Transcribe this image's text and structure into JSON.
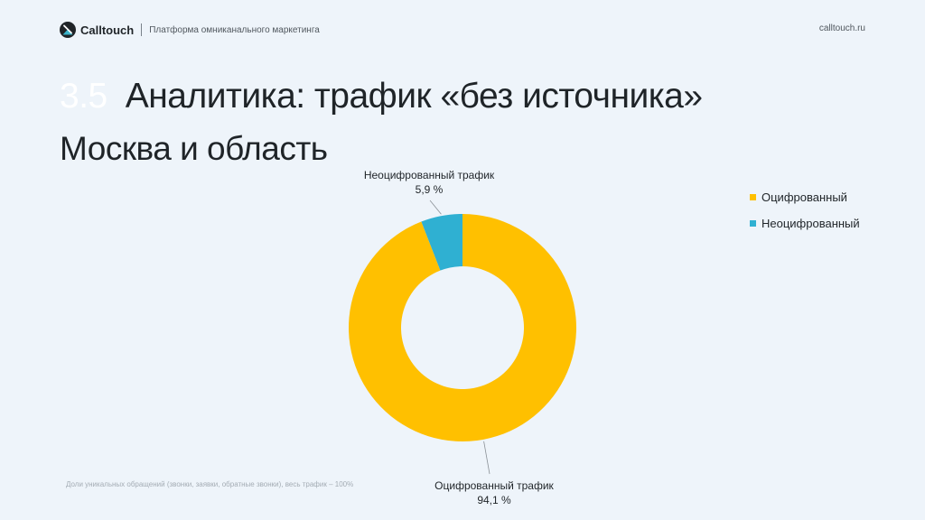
{
  "header": {
    "brand": "Calltouch",
    "tagline": "Платформа омниканального маркетинга",
    "site": "calltouch.ru"
  },
  "slide": {
    "section_number": "3.5",
    "title": "Аналитика: трафик «без источника»",
    "subtitle": "Москва и область",
    "footnote": "Доли уникальных обращений (звонки, заявки, обратные звонки), весь трафик – 100%"
  },
  "colors": {
    "digitized": "#ffc000",
    "undigitized": "#2fb0d2",
    "brand_dark": "#1f2428",
    "brand_teal": "#3ab3c9"
  },
  "chart_data": {
    "type": "pie",
    "variant": "donut",
    "slices": [
      {
        "label": "Неоцифрованный трафик",
        "value_label": "5,9 %",
        "value": 5.9,
        "color": "#2fb0d2"
      },
      {
        "label": "Оцифрованный трафик",
        "value_label": "94,1 %",
        "value": 94.1,
        "color": "#ffc000"
      }
    ],
    "legend": {
      "position": "top-right",
      "entries": [
        {
          "name": "Оцифрованный",
          "color": "#ffc000"
        },
        {
          "name": "Неоцифрованный",
          "color": "#2fb0d2"
        }
      ]
    }
  }
}
